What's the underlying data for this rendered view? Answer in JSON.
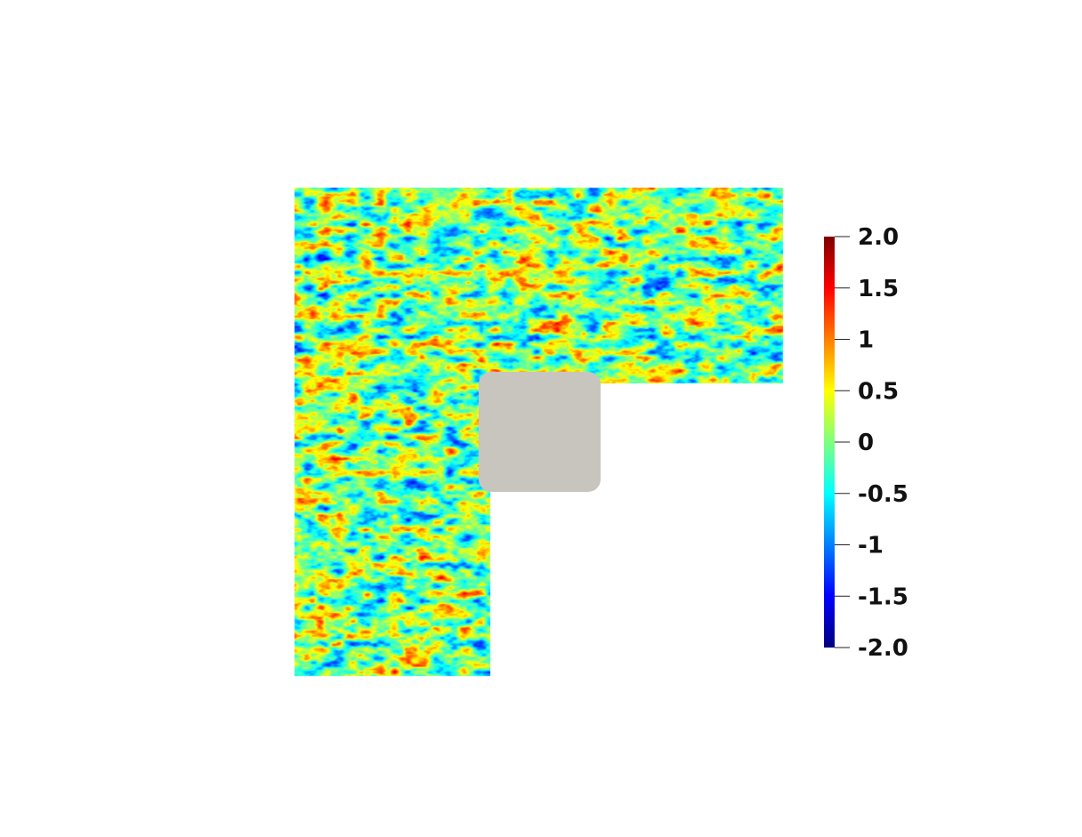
{
  "field_plot": {
    "domain_shape": "L-shaped",
    "colormap": "jet",
    "pattern": "random field",
    "obstacle_color": "#c8c5be"
  },
  "colorbar": {
    "range": [
      -2.0,
      2.0
    ],
    "ticks": [
      {
        "value": 2.0,
        "label": "2.0"
      },
      {
        "value": 1.5,
        "label": "1.5"
      },
      {
        "value": 1.0,
        "label": "1"
      },
      {
        "value": 0.5,
        "label": "0.5"
      },
      {
        "value": 0.0,
        "label": "0"
      },
      {
        "value": -0.5,
        "label": "-0.5"
      },
      {
        "value": -1.0,
        "label": "-1"
      },
      {
        "value": -1.5,
        "label": "-1.5"
      },
      {
        "value": -2.0,
        "label": "-2.0"
      }
    ],
    "colors": [
      "#00007f",
      "#0000ff",
      "#007fff",
      "#00ffff",
      "#7fff7f",
      "#ffff00",
      "#ff7f00",
      "#ff0000",
      "#7f0000"
    ]
  }
}
